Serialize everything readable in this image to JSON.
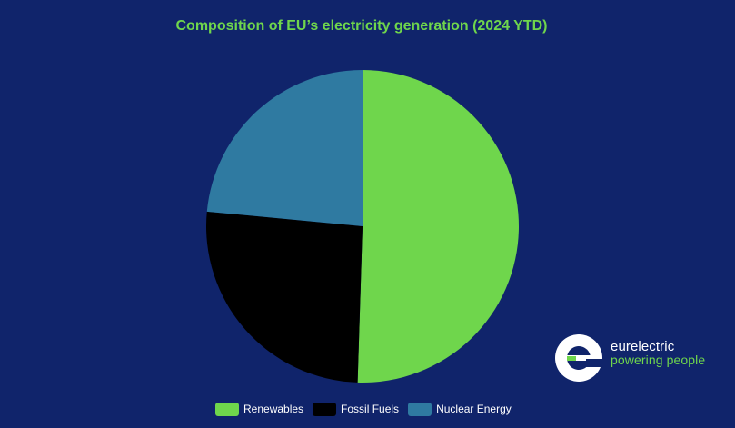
{
  "chart_data": {
    "type": "pie",
    "title": "Composition of EU’s electricity generation (2024 YTD)",
    "categories": [
      "Renewables",
      "Fossil Fuels",
      "Nuclear Energy"
    ],
    "values": [
      50.5,
      26.0,
      23.5
    ],
    "colors": [
      "#6fd64c",
      "#000000",
      "#2f7aa1"
    ],
    "legend_position": "bottom",
    "start_angle": "top, clockwise"
  },
  "branding": {
    "name": "eurelectric",
    "tagline": "powering people",
    "icon": "eurelectric-logo-icon"
  },
  "colors": {
    "background": "#10246b",
    "accent": "#6fd64c"
  }
}
